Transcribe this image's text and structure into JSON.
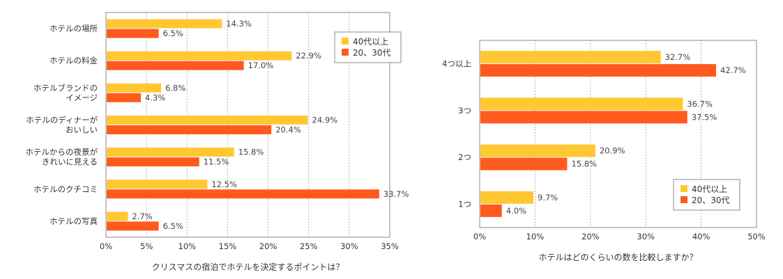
{
  "colors": {
    "older": "#FFC832",
    "younger": "#FF5A1E",
    "grid": "#b5b5b5",
    "frame": "#888888"
  },
  "chart_data": [
    {
      "type": "bar",
      "orientation": "horizontal",
      "categories": [
        [
          "ホテルの場所"
        ],
        [
          "ホテルの料金"
        ],
        [
          "ホテルブランドの",
          "イメージ"
        ],
        [
          "ホテルのディナーが",
          "おいしい"
        ],
        [
          "ホテルからの夜景が",
          "きれいに見える"
        ],
        [
          "ホテルのクチコミ"
        ],
        [
          "ホテルの写真"
        ]
      ],
      "series": [
        {
          "name": "40代以上",
          "values": [
            14.3,
            22.9,
            6.8,
            24.9,
            15.8,
            12.5,
            2.7
          ]
        },
        {
          "name": "20、30代",
          "values": [
            6.5,
            17.0,
            4.3,
            20.4,
            11.5,
            33.7,
            6.5
          ]
        }
      ],
      "value_labels": [
        [
          "14.3%",
          "22.9%",
          "6.8%",
          "24.9%",
          "15.8%",
          "12.5%",
          "2.7%"
        ],
        [
          "6.5%",
          "17.0%",
          "4.3%",
          "20.4%",
          "11.5%",
          "33.7%",
          "6.5%"
        ]
      ],
      "xlim": [
        0,
        35
      ],
      "xticks": [
        "0%",
        "5%",
        "10%",
        "15%",
        "20%",
        "25%",
        "30%",
        "35%"
      ],
      "xlabel": "クリスマスの宿泊でホテルを決定するポイントは？",
      "grid": true,
      "legend_position": "top-right"
    },
    {
      "type": "bar",
      "orientation": "horizontal",
      "categories": [
        [
          "4つ以上"
        ],
        [
          "3つ"
        ],
        [
          "2つ"
        ],
        [
          "1つ"
        ]
      ],
      "series": [
        {
          "name": "40代以上",
          "values": [
            32.7,
            36.7,
            20.9,
            9.7
          ]
        },
        {
          "name": "20、30代",
          "values": [
            42.7,
            37.5,
            15.8,
            4.0
          ]
        }
      ],
      "value_labels": [
        [
          "32.7%",
          "36.7%",
          "20.9%",
          "9.7%"
        ],
        [
          "42.7%",
          "37.5%",
          "15.8%",
          "4.0%"
        ]
      ],
      "xlim": [
        0,
        50
      ],
      "xticks": [
        "0%",
        "10%",
        "20%",
        "30%",
        "40%",
        "50%"
      ],
      "xlabel": "ホテルはどのくらいの数を比較しますか？",
      "grid": true,
      "legend_position": "bottom-right"
    }
  ]
}
